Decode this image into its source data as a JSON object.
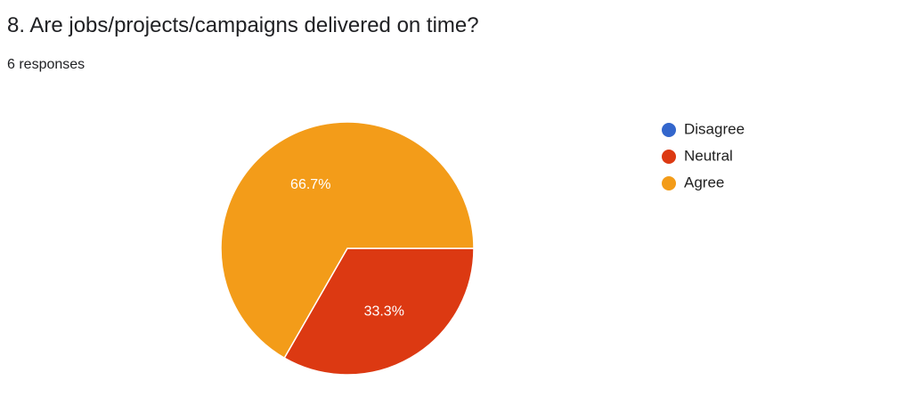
{
  "chart_data": {
    "type": "pie",
    "title": "8. Are jobs/projects/campaigns delivered on time?",
    "subtitle": "6 responses",
    "categories": [
      "Disagree",
      "Neutral",
      "Agree"
    ],
    "values": [
      0,
      33.3,
      66.7
    ],
    "value_labels": [
      null,
      "33.3%",
      "66.7%"
    ],
    "colors": [
      "#3366cc",
      "#dc3912",
      "#f39c19"
    ],
    "legend": "right"
  }
}
